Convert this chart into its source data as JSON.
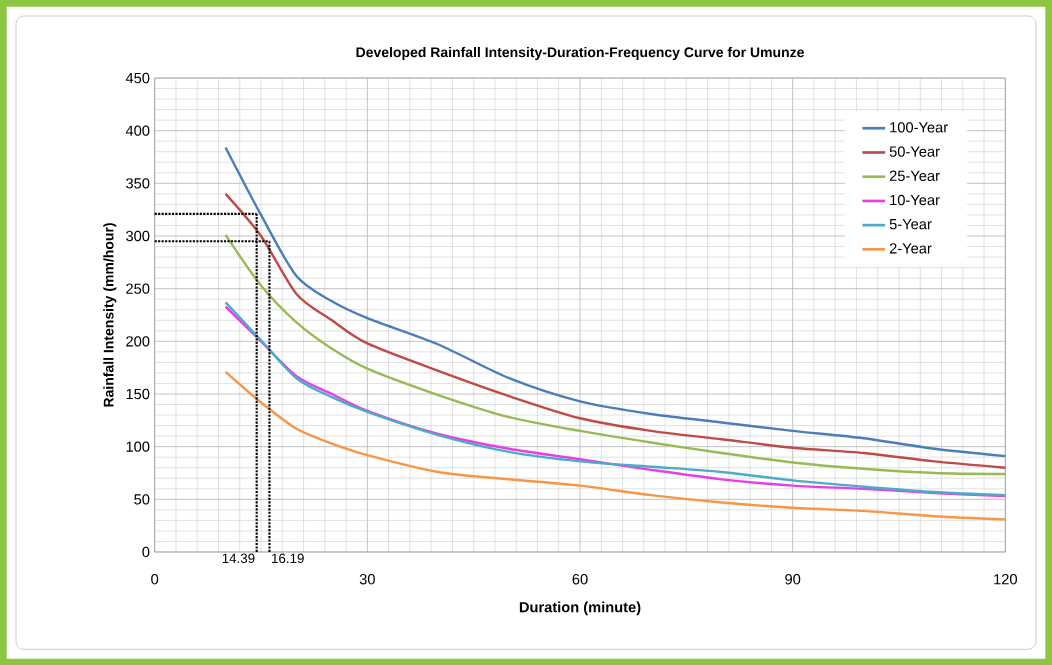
{
  "chart_data": {
    "type": "line",
    "title": "Developed Rainfall Intensity-Duration-Frequency Curve for Umunze",
    "xlabel": "Duration (minute)",
    "ylabel": "Rainfall Intensity (mm/hour)",
    "x": [
      10,
      15,
      20,
      25,
      30,
      40,
      50,
      60,
      70,
      80,
      90,
      100,
      110,
      120
    ],
    "series": [
      {
        "name": "100-Year",
        "color": "#4a7ebb",
        "values": [
          384,
          320,
          262,
          238,
          222,
          197,
          165,
          143,
          131,
          123,
          115,
          108,
          98,
          91
        ]
      },
      {
        "name": "50-Year",
        "color": "#be4b48",
        "values": [
          340,
          300,
          245,
          220,
          198,
          172,
          148,
          127,
          115,
          107,
          99,
          94,
          86,
          80
        ]
      },
      {
        "name": "25-Year",
        "color": "#98b954",
        "values": [
          301,
          253,
          218,
          193,
          174,
          149,
          128,
          115,
          104,
          94,
          85,
          79,
          75,
          74
        ]
      },
      {
        "name": "10-Year",
        "color": "#e83ee8",
        "values": [
          233,
          200,
          167,
          150,
          134,
          112,
          98,
          88,
          78,
          69,
          63,
          60,
          56,
          53
        ]
      },
      {
        "name": "5-Year",
        "color": "#4bacc6",
        "values": [
          237,
          201,
          165,
          147,
          133,
          111,
          95,
          86,
          81,
          76,
          68,
          62,
          57,
          54
        ]
      },
      {
        "name": "2-Year",
        "color": "#f79646",
        "values": [
          171,
          142,
          117,
          103,
          92,
          76,
          69,
          63,
          54,
          47,
          42,
          39,
          34,
          31
        ]
      }
    ],
    "xlim": [
      0,
      120
    ],
    "xticks": [
      0,
      30,
      60,
      90,
      120
    ],
    "ylim": [
      0,
      450
    ],
    "yticks": [
      0,
      50,
      100,
      150,
      200,
      250,
      300,
      350,
      400,
      450
    ],
    "ref_lines": [
      {
        "axis": "x",
        "value": 14.39,
        "label": "14.39",
        "color": "#000000",
        "line_style": "dotted"
      },
      {
        "axis": "x",
        "value": 16.19,
        "label": "16.19",
        "color": "#000000",
        "line_style": "dotted"
      },
      {
        "axis": "y",
        "value": 321,
        "color": "#000000",
        "line_style": "dotted"
      },
      {
        "axis": "y",
        "value": 295,
        "color": "#000000",
        "line_style": "dotted"
      }
    ],
    "grid": true,
    "legend": "top right",
    "marker": "none",
    "line_style": "solid"
  }
}
